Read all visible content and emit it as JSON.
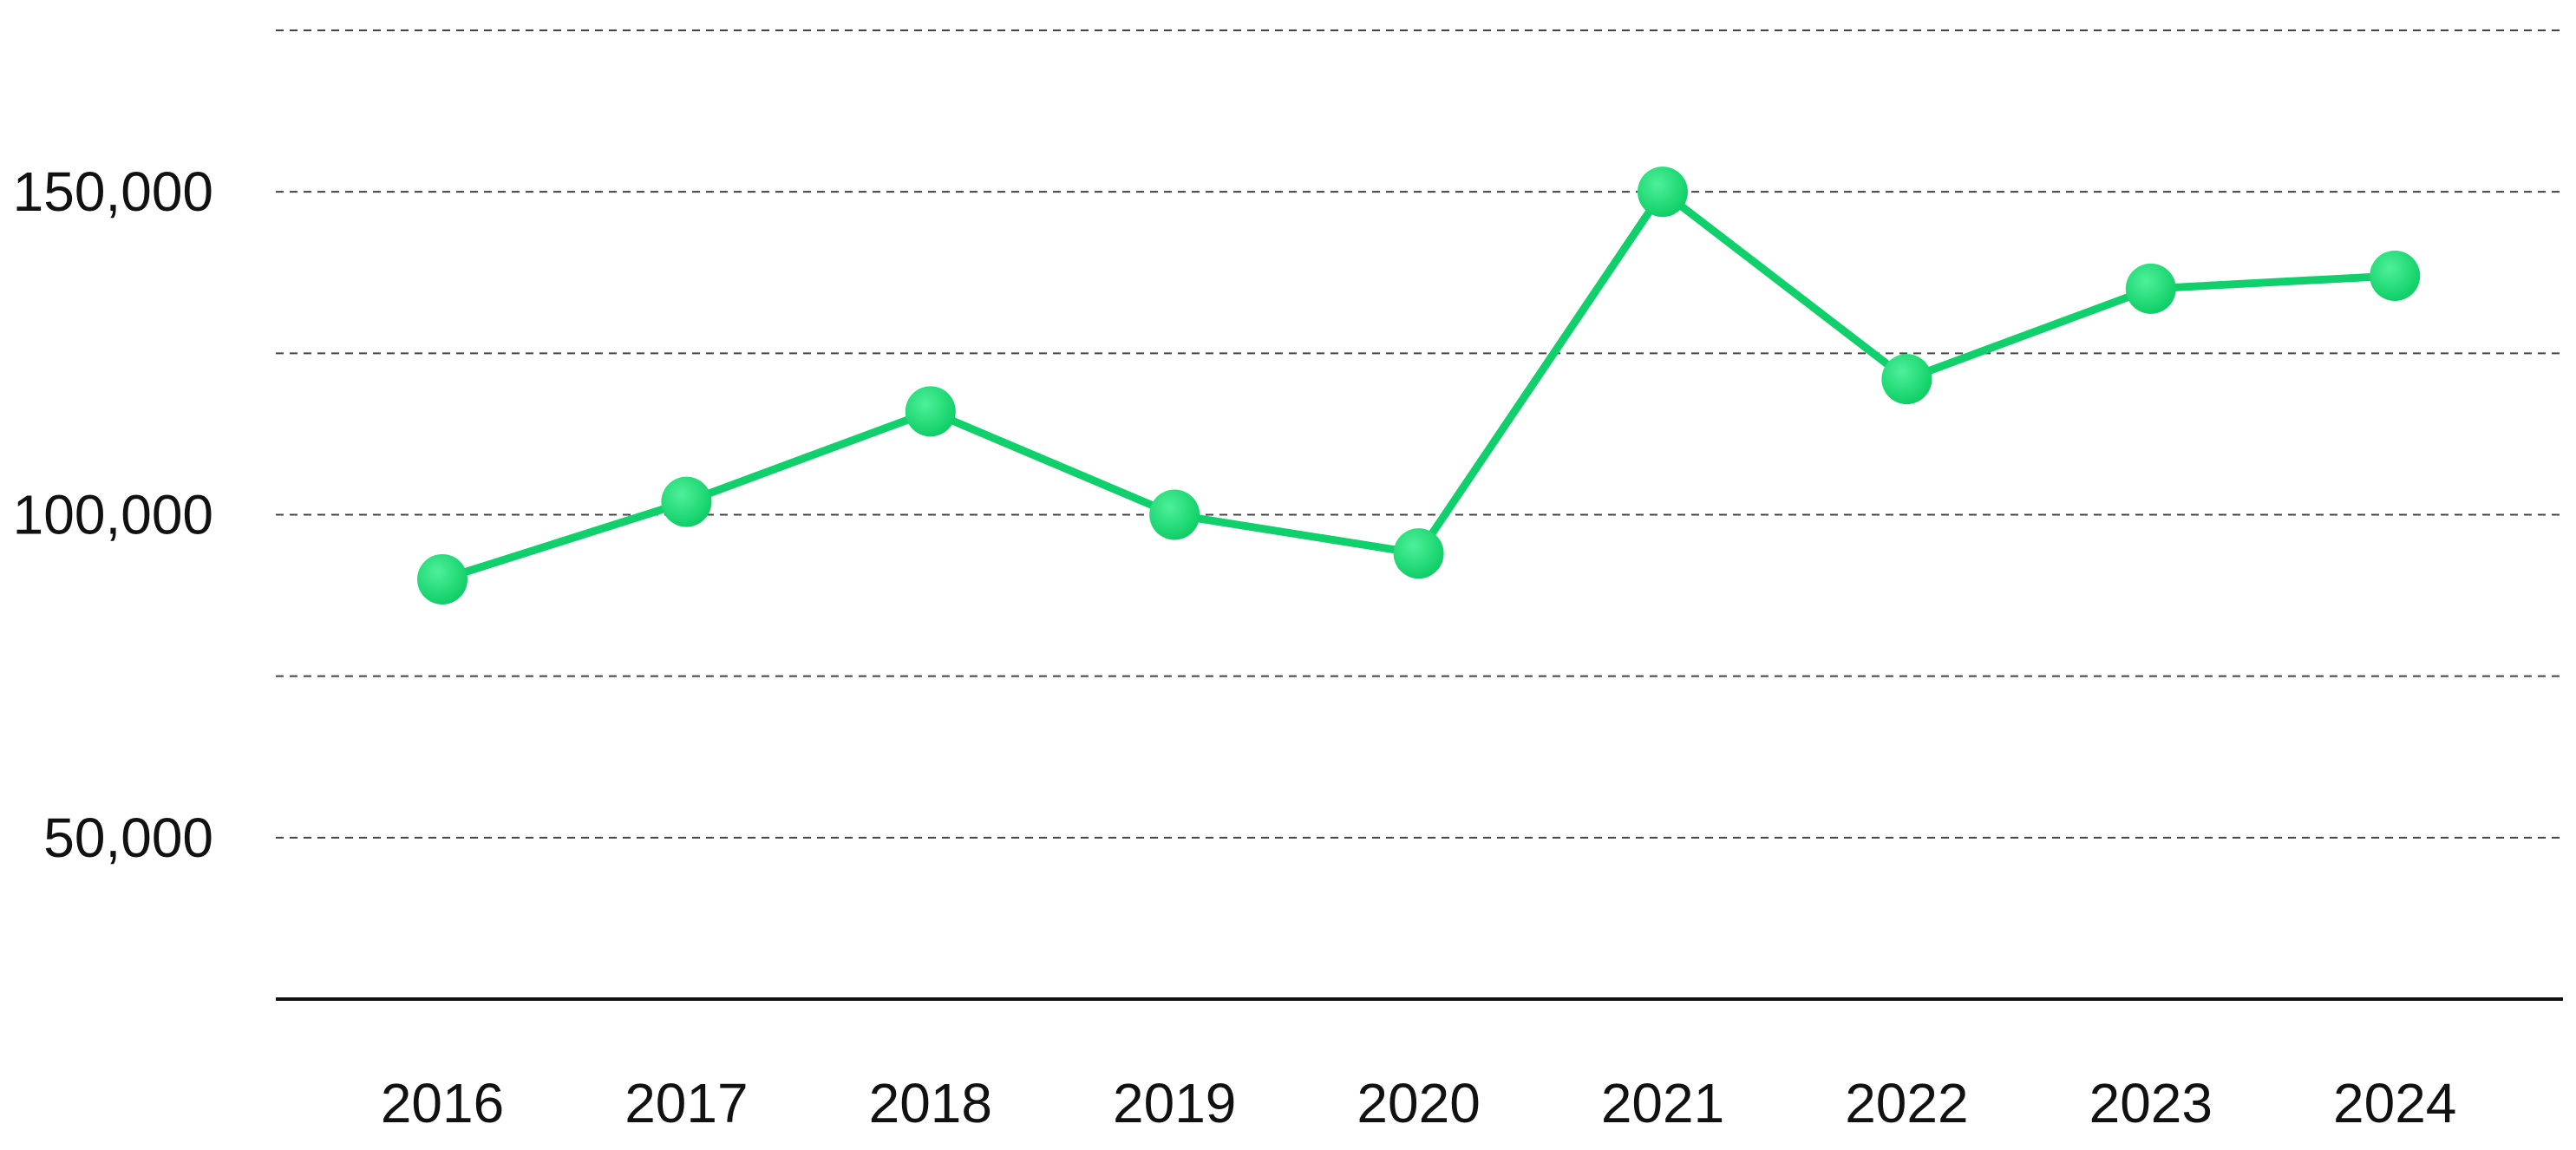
{
  "chart_data": {
    "type": "line",
    "title": "",
    "xlabel": "",
    "ylabel": "",
    "x": [
      "2016",
      "2017",
      "2018",
      "2019",
      "2020",
      "2021",
      "2022",
      "2023",
      "2024"
    ],
    "series": [
      {
        "values": [
          90000,
          102000,
          116000,
          100000,
          94000,
          150000,
          121000,
          135000,
          137000
        ]
      }
    ],
    "y_ticks": [
      50000,
      100000,
      150000
    ],
    "y_tick_labels": [
      "50,000",
      "100,000",
      "150,000"
    ],
    "ylim": [
      25000,
      175000
    ],
    "grid": true,
    "grid_style": "dashed",
    "legend": "none",
    "colors": {
      "line": "#0fd06a",
      "marker": "#16d66f",
      "grid": "#444444",
      "axis": "#111111",
      "text": "#111111"
    }
  }
}
